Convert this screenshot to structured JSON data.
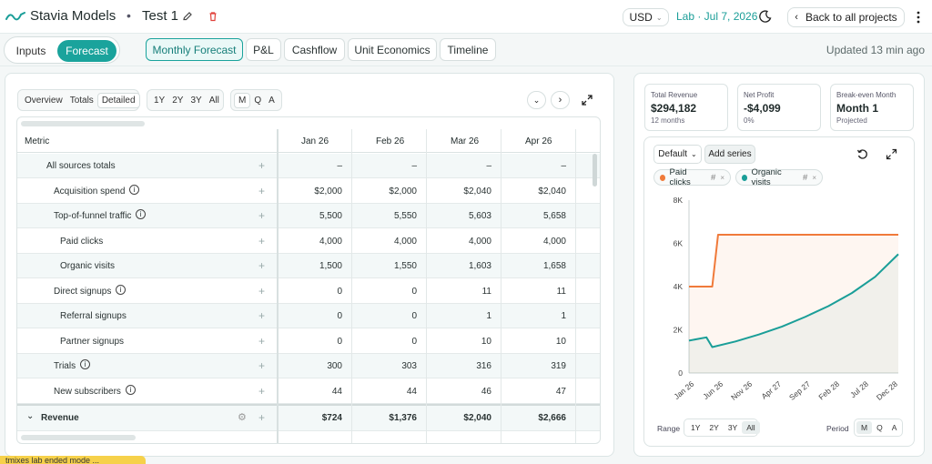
{
  "header": {
    "brand": "Stavia Models",
    "separator": "•",
    "model_name": "Test 1",
    "currency": "USD",
    "lab_date": "Lab · Jul 7, 2026",
    "back_label": "Back to all projects"
  },
  "nav": {
    "mode_tabs": [
      {
        "label": "Inputs"
      },
      {
        "label": "Forecast",
        "active": true
      }
    ],
    "tabs": [
      {
        "label": "Monthly Forecast",
        "active": true
      },
      {
        "label": "P&L"
      },
      {
        "label": "Cashflow"
      },
      {
        "label": "Unit Economics"
      },
      {
        "label": "Timeline"
      }
    ],
    "updated": "Updated 13 min ago"
  },
  "table": {
    "view_modes": [
      "Overview",
      "Totals",
      "Detailed"
    ],
    "active_view": "Detailed",
    "ranges": [
      "1Y",
      "2Y",
      "3Y",
      "All"
    ],
    "active_range": "All",
    "periods": [
      "M",
      "Q",
      "A"
    ],
    "active_period": "M",
    "header": {
      "metric": "Metric",
      "months": [
        "Jan 26",
        "Feb 26",
        "Mar 26",
        "Apr 26"
      ]
    },
    "rows": [
      {
        "label": "All sources totals",
        "values": [
          "–",
          "–",
          "–",
          "–"
        ]
      },
      {
        "label": "Acquisition spend",
        "values": [
          "$2,000",
          "$2,000",
          "$2,040",
          "$2,040"
        ]
      },
      {
        "label": "Top-of-funnel traffic",
        "values": [
          "5,500",
          "5,550",
          "5,603",
          "5,658"
        ]
      },
      {
        "label": "Paid clicks",
        "values": [
          "4,000",
          "4,000",
          "4,000",
          "4,000"
        ]
      },
      {
        "label": "Organic visits",
        "values": [
          "1,500",
          "1,550",
          "1,603",
          "1,658"
        ]
      },
      {
        "label": "Direct signups",
        "values": [
          "0",
          "0",
          "11",
          "11"
        ]
      },
      {
        "label": "Referral signups",
        "values": [
          "0",
          "0",
          "1",
          "1"
        ]
      },
      {
        "label": "Partner signups",
        "values": [
          "0",
          "0",
          "10",
          "10"
        ]
      },
      {
        "label": "Trials",
        "values": [
          "300",
          "303",
          "316",
          "319"
        ]
      },
      {
        "label": "New subscribers",
        "values": [
          "44",
          "44",
          "46",
          "47"
        ]
      },
      {
        "label": "Revenue",
        "values": [
          "$724",
          "$1,376",
          "$2,040",
          "$2,666"
        ]
      }
    ]
  },
  "kpis": [
    {
      "title": "Total Revenue",
      "value": "$294,182",
      "sub": "12 months"
    },
    {
      "title": "Net Profit",
      "value": "-$4,099",
      "sub": "0%"
    },
    {
      "title": "Break-even Month",
      "value": "Month 1",
      "sub": "Projected"
    }
  ],
  "chart_controls": {
    "default_label": "Default",
    "add_series": "Add series",
    "range_label": "Range",
    "ranges": [
      "1Y",
      "2Y",
      "3Y",
      "All"
    ],
    "active_range": "All",
    "period_label": "Period",
    "periods": [
      "M",
      "Q",
      "A"
    ],
    "active_period": "M"
  },
  "chips": [
    {
      "label": "Paid clicks",
      "color": "#f07a3a"
    },
    {
      "label": "Organic visits",
      "color": "#1a9e98"
    }
  ],
  "chip_symbol": "#",
  "chart_data": {
    "type": "line",
    "title": "",
    "xlabel": "",
    "ylabel": "",
    "x_ticks": [
      "Jan 26",
      "Jun 26",
      "Nov 26",
      "Apr 27",
      "Sep 27",
      "Feb 28",
      "Jul 28",
      "Dec 28"
    ],
    "y_ticks": [
      "0",
      "2K",
      "4K",
      "6K",
      "8K"
    ],
    "ylim": [
      0,
      8000
    ],
    "x_months": [
      0,
      36
    ],
    "series": [
      {
        "name": "Paid clicks",
        "color": "#f07a3a",
        "points": [
          [
            0,
            4000
          ],
          [
            4,
            4000
          ],
          [
            5,
            6400
          ],
          [
            36,
            6400
          ]
        ]
      },
      {
        "name": "Organic visits",
        "color": "#1a9e98",
        "points": [
          [
            0,
            1500
          ],
          [
            3,
            1650
          ],
          [
            4,
            1200
          ],
          [
            8,
            1460
          ],
          [
            12,
            1780
          ],
          [
            16,
            2150
          ],
          [
            20,
            2600
          ],
          [
            24,
            3100
          ],
          [
            28,
            3700
          ],
          [
            32,
            4450
          ],
          [
            36,
            5500
          ]
        ]
      }
    ],
    "grid": false,
    "legend": "top-left"
  },
  "banner": "tmixes  lab  ended  mode  ..."
}
